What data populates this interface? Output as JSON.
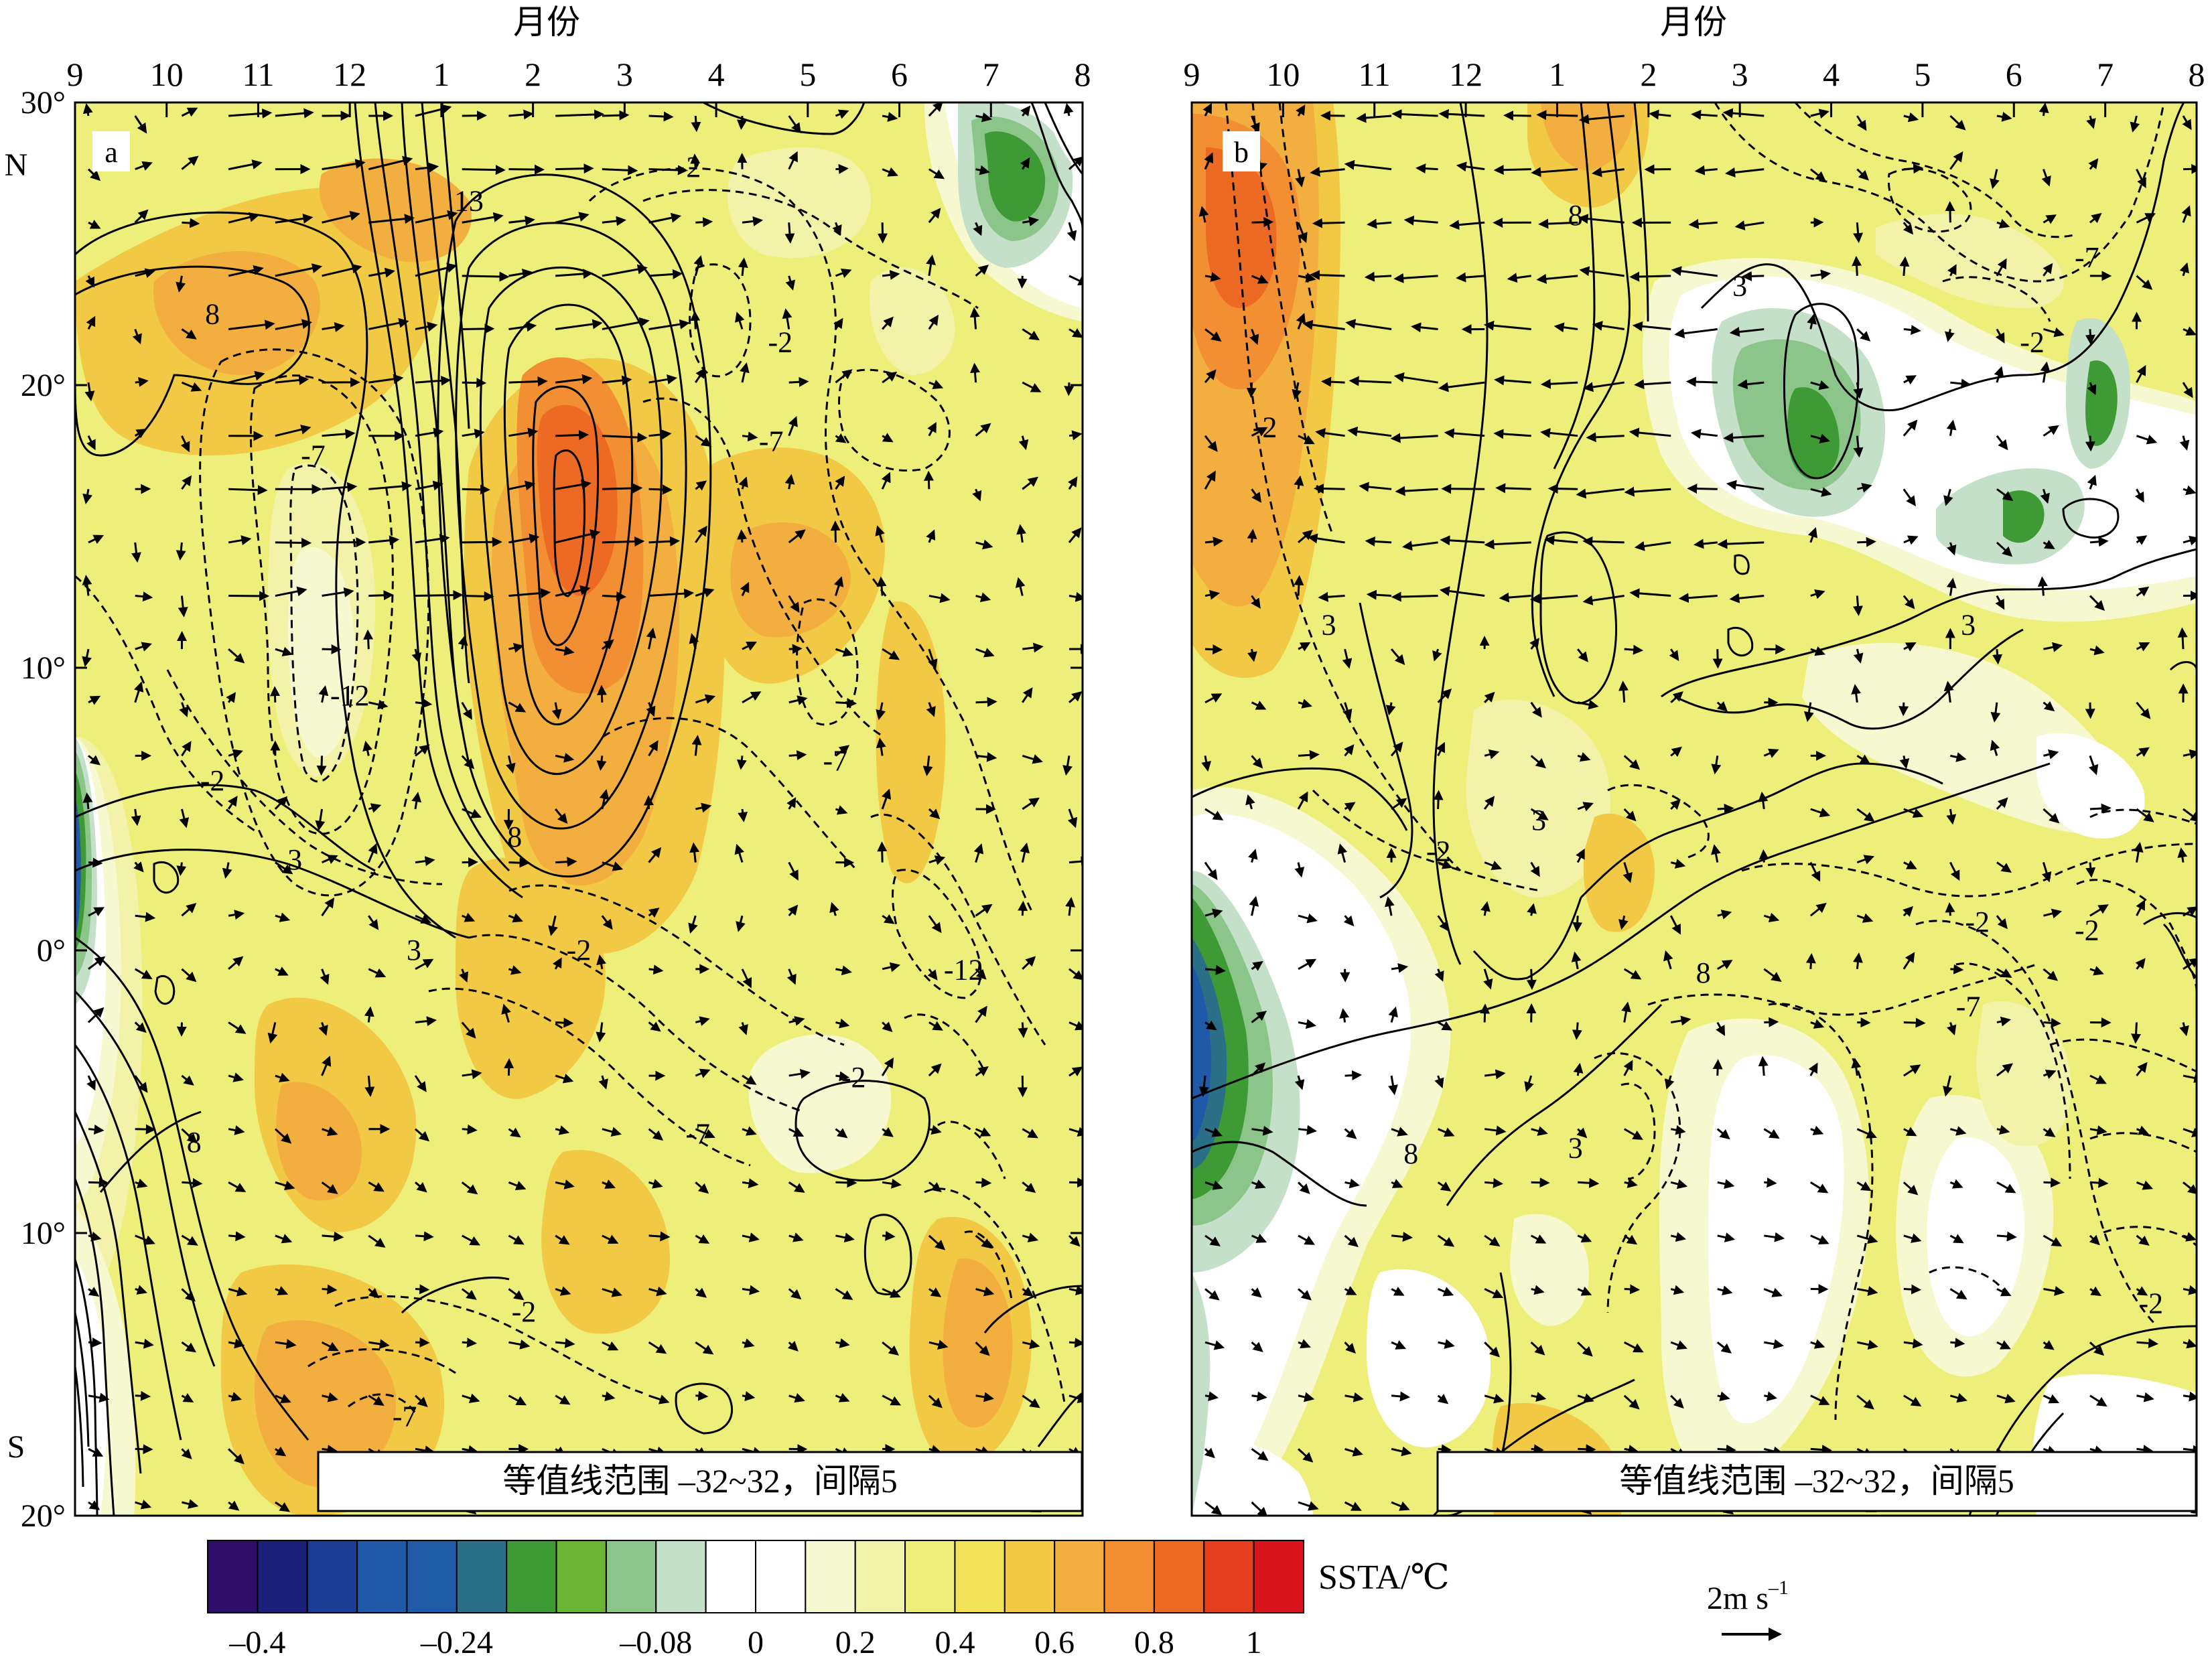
{
  "figure": {
    "x_axis_title": "月份",
    "month_ticks": [
      "9",
      "10",
      "11",
      "12",
      "1",
      "2",
      "3",
      "4",
      "5",
      "6",
      "7",
      "8"
    ],
    "lat_ticks": [
      "30°",
      "20°",
      "10°",
      "0°",
      "10°",
      "20°"
    ],
    "lat_values": [
      30,
      20,
      10,
      0,
      -10,
      -20
    ],
    "hemisphere_north": "N",
    "hemisphere_south": "S",
    "contour_note": "等值线范围 –32~32，间隔5",
    "vector_key_label": "2m s",
    "vector_key_superscript": "–1"
  },
  "colorbar": {
    "title": "SSTA/℃",
    "tick_labels": [
      "–0.4",
      "–0.24",
      "–0.08",
      "0",
      "0.2",
      "0.4",
      "0.6",
      "0.8",
      "1"
    ],
    "colors": [
      "#2d0f6b",
      "#1a1f7a",
      "#1d3d94",
      "#1f59a8",
      "#1f5ba6",
      "#2b6f87",
      "#3d9a35",
      "#6ab436",
      "#8cc58a",
      "#c4e0c8",
      "#ffffff",
      "#ffffff",
      "#f6f9cf",
      "#f2f3a8",
      "#eeef7a",
      "#f1e258",
      "#f2c945",
      "#f2ae3f",
      "#f28f33",
      "#ec6a24",
      "#e33e1e",
      "#d8141d"
    ]
  },
  "chart_data": [
    {
      "panel": "a",
      "type": "heatmap",
      "description_fields": "Hovmoller diagram: x = month (Sep to Aug), y = latitude (20S to 30N); shading = SSTA (℃); contours labelled; vectors = wind anomaly",
      "x": [
        "9",
        "10",
        "11",
        "12",
        "1",
        "2",
        "3",
        "4",
        "5",
        "6",
        "7",
        "8"
      ],
      "y_range": [
        -20,
        30
      ],
      "contour_labels": [
        {
          "label": "13",
          "month": "1.3",
          "lat": 26.5
        },
        {
          "label": "8",
          "month": "10.5",
          "lat": 22.5
        },
        {
          "label": "-2",
          "month": "3.7",
          "lat": 27.7
        },
        {
          "label": "-2",
          "month": "4.7",
          "lat": 21.5
        },
        {
          "label": "-7",
          "month": "11.6",
          "lat": 17.5
        },
        {
          "label": "-7",
          "month": "4.6",
          "lat": 18.0
        },
        {
          "label": "-12",
          "month": "12",
          "lat": 9.0
        },
        {
          "label": "-2",
          "month": "10.5",
          "lat": 6.0
        },
        {
          "label": "3",
          "month": "11.4",
          "lat": 3.2
        },
        {
          "label": "-7",
          "month": "5.3",
          "lat": 6.7
        },
        {
          "label": "8",
          "month": "1.8",
          "lat": 4.0
        },
        {
          "label": "3",
          "month": "12.7",
          "lat": 0.0
        },
        {
          "label": "-2",
          "month": "2.5",
          "lat": 0.0
        },
        {
          "label": "-12",
          "month": "6.7",
          "lat": -0.7
        },
        {
          "label": "8",
          "month": "10.3",
          "lat": -6.8
        },
        {
          "label": "-2",
          "month": "5.5",
          "lat": -4.5
        },
        {
          "label": "-7",
          "month": "3.8",
          "lat": -6.5
        },
        {
          "label": "-2",
          "month": "1.9",
          "lat": -12.8
        },
        {
          "label": "-7",
          "month": "12.6",
          "lat": -16.5
        }
      ],
      "ssta_max_region": {
        "month_range": [
          "2",
          "3"
        ],
        "lat_range": [
          8,
          20
        ],
        "value_approx": 0.9
      }
    },
    {
      "panel": "b",
      "type": "heatmap",
      "description_fields": "Hovmoller diagram: x = month (Sep to Aug), y = latitude (20S to 30N); shading = SSTA (℃); contours labelled; vectors = wind anomaly",
      "x": [
        "9",
        "10",
        "11",
        "12",
        "1",
        "2",
        "3",
        "4",
        "5",
        "6",
        "7",
        "8"
      ],
      "y_range": [
        -20,
        30
      ],
      "contour_labels": [
        {
          "label": "8",
          "month": "1.2",
          "lat": 26.0
        },
        {
          "label": "-7",
          "month": "6.8",
          "lat": 24.5
        },
        {
          "label": "3",
          "month": "3",
          "lat": 23.5
        },
        {
          "label": "-2",
          "month": "6.2",
          "lat": 21.5
        },
        {
          "label": "-2",
          "month": "9.8",
          "lat": 18.5
        },
        {
          "label": "3",
          "month": "10.5",
          "lat": 11.5
        },
        {
          "label": "3",
          "month": "5.5",
          "lat": 11.5
        },
        {
          "label": "3",
          "month": "12.8",
          "lat": 4.6
        },
        {
          "label": "-2",
          "month": "11.7",
          "lat": 3.5
        },
        {
          "label": "-2",
          "month": "5.6",
          "lat": 1.0
        },
        {
          "label": "-2",
          "month": "6.8",
          "lat": 0.7
        },
        {
          "label": "8",
          "month": "2.6",
          "lat": -0.8
        },
        {
          "label": "-7",
          "month": "5.5",
          "lat": -2.0
        },
        {
          "label": "8",
          "month": "11.4",
          "lat": -7.2
        },
        {
          "label": "3",
          "month": "1.2",
          "lat": -7.0
        },
        {
          "label": "-2",
          "month": "7.5",
          "lat": -12.5
        }
      ],
      "ssta_max_region": {
        "month_range": [
          "9",
          "10"
        ],
        "lat_range": [
          18,
          29
        ],
        "value_approx": 0.8
      }
    }
  ]
}
